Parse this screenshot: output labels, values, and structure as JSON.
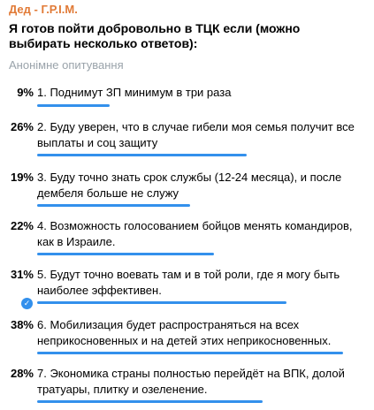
{
  "author": "Дед - Г.Р.І.М.",
  "question": "Я готов пойти добровольно в ТЦК если (можно выбирать несколько ответов):",
  "poll_type": "Анонімне опитування",
  "accent_color": "#3390ec",
  "options": [
    {
      "percent": "9%",
      "text": "1. Поднимут ЗП минимум в три раза",
      "value": 9,
      "chosen": false
    },
    {
      "percent": "26%",
      "text": "2. Буду уверен, что в случае гибели моя семья получит все выплаты и соц защиту",
      "value": 26,
      "chosen": false
    },
    {
      "percent": "19%",
      "text": "3. Буду точно знать срок службы (12-24 месяца), и после дембеля больше не служу",
      "value": 19,
      "chosen": false
    },
    {
      "percent": "22%",
      "text": "4. Возможность голосованием бойцов менять командиров, как в Израиле.",
      "value": 22,
      "chosen": false
    },
    {
      "percent": "31%",
      "text": "5. Будут точно воевать там и в той роли, где я могу быть наиболее эффективен.",
      "value": 31,
      "chosen": true
    },
    {
      "percent": "38%",
      "text": "6. Мобилизация будет распространяться на всех неприкосновенных и на детей этих неприкосновенных.",
      "value": 38,
      "chosen": false
    },
    {
      "percent": "28%",
      "text": "7. Экономика страны полностью перейдёт на ВПК, долой тратуары, плитку и озеленение.",
      "value": 28,
      "chosen": false
    }
  ]
}
